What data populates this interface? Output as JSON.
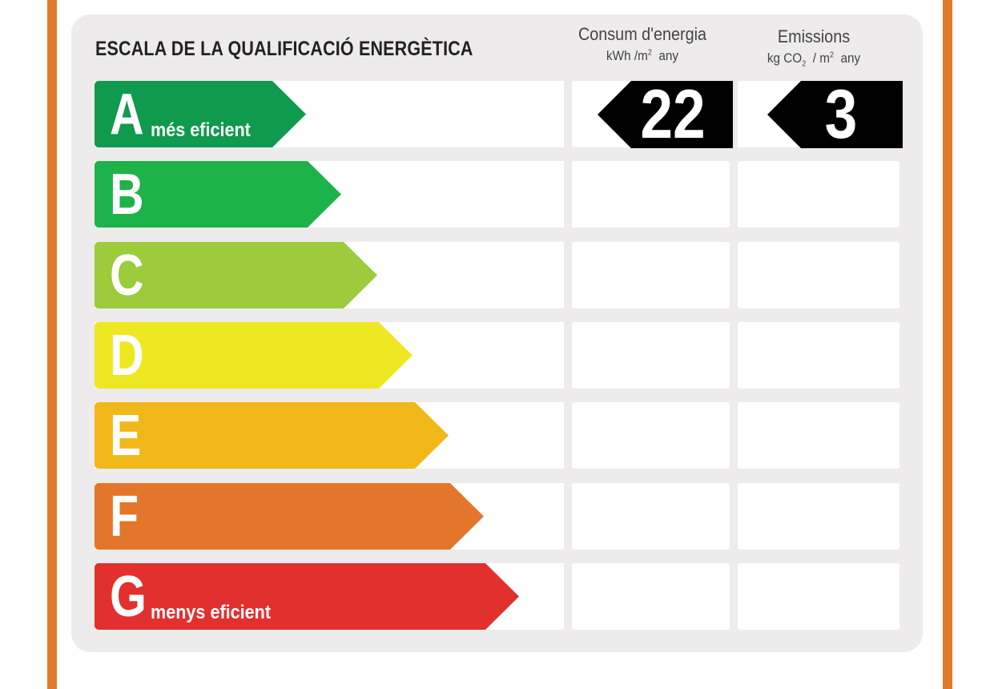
{
  "title": "ESCALA DE LA QUALIFICACIÓ ENERGÈTICA",
  "columns": {
    "energy": {
      "line1": "Consum d'energia",
      "unit_a": "kWh /m",
      "unit_sup": "2",
      "unit_b": "any"
    },
    "emissions": {
      "line1": "Emissions",
      "unit_a": "kg CO",
      "unit_sub": "2",
      "unit_mid": "/ m",
      "unit_sup": "2",
      "unit_b": "any"
    }
  },
  "classes": [
    {
      "letter": "A",
      "label": "més eficient",
      "color": "#0F9A4E"
    },
    {
      "letter": "B",
      "label": "",
      "color": "#1DB34A"
    },
    {
      "letter": "C",
      "label": "",
      "color": "#9CCB3B"
    },
    {
      "letter": "D",
      "label": "",
      "color": "#EEE823"
    },
    {
      "letter": "E",
      "label": "",
      "color": "#F2B81A"
    },
    {
      "letter": "F",
      "label": "",
      "color": "#E3762B"
    },
    {
      "letter": "G",
      "label": "menys eficient",
      "color": "#E2302E"
    }
  ],
  "rating": {
    "class": "A",
    "energy_value": "22",
    "emissions_value": "3"
  }
}
